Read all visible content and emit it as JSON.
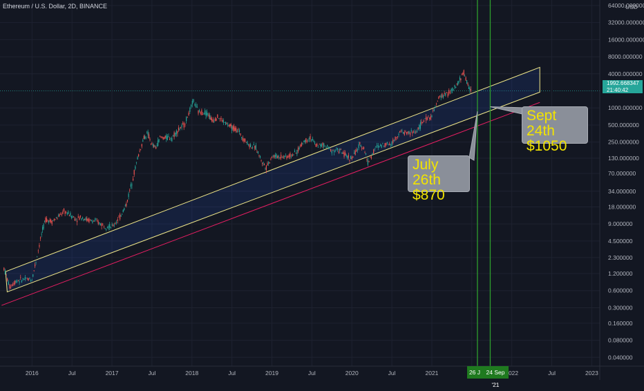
{
  "title": "Ethereum / U.S. Dollar, 2D, BINANCE",
  "axis_unit": "USD",
  "price_tag": {
    "price": "1992.668347",
    "countdown": "21:40:42",
    "color": "#26a69a"
  },
  "callouts": [
    {
      "line1": "July 26th",
      "line2": "$870"
    },
    {
      "line1": "Sept 24th",
      "line2": "$1050"
    }
  ],
  "time_tags": [
    "26 J",
    "24 Sep '21"
  ],
  "colors": {
    "background": "#131722",
    "up": "#26a69a",
    "down": "#ef5350",
    "channel": "#f2e98a",
    "support": "#e91e63",
    "vline": "#2e9e2e",
    "callout_text": "#f2e400"
  },
  "chart_data": {
    "type": "line",
    "scale": "log",
    "title": "Ethereum / U.S. Dollar, 2D, BINANCE",
    "ylabel": "USD",
    "y_ticks": [
      "64000.000000",
      "32000.000000",
      "16000.000000",
      "8000.000000",
      "4000.000000",
      "1992.668347",
      "1000.000000",
      "500.000000",
      "250.000000",
      "130.000000",
      "70.000000",
      "34.000000",
      "18.000000",
      "9.000000",
      "4.500000",
      "2.300000",
      "1.200000",
      "0.600000",
      "0.300000",
      "0.160000",
      "0.080000",
      "0.040000"
    ],
    "y_tick_values": [
      64000,
      32000,
      16000,
      8000,
      4000,
      2000,
      1000,
      500,
      250,
      130,
      70,
      34,
      18,
      9,
      4.5,
      2.3,
      1.2,
      0.6,
      0.3,
      0.16,
      0.08,
      0.04
    ],
    "x_ticks": [
      "2016",
      "Jul",
      "2017",
      "Jul",
      "2018",
      "Jul",
      "2019",
      "Jul",
      "2020",
      "Jul",
      "2021",
      "Jul",
      "2022",
      "Jul",
      "2023"
    ],
    "x_tick_values": [
      2016.0,
      2016.5,
      2017.0,
      2017.5,
      2018.0,
      2018.5,
      2019.0,
      2019.5,
      2020.0,
      2020.5,
      2021.0,
      2021.5,
      2022.0,
      2022.5,
      2023.0
    ],
    "xlim": [
      2015.6,
      2023.1
    ],
    "ylim": [
      0.028,
      80000
    ],
    "series": [
      {
        "x": [
          2015.65,
          2015.72,
          2015.8,
          2015.9,
          2016.0,
          2016.05,
          2016.12,
          2016.17,
          2016.25,
          2016.33,
          2016.4,
          2016.48,
          2016.55,
          2016.62,
          2016.7,
          2016.8,
          2016.9,
          2017.0,
          2017.1,
          2017.18,
          2017.25,
          2017.32,
          2017.4,
          2017.45,
          2017.5,
          2017.55,
          2017.6,
          2017.68,
          2017.75,
          2017.82,
          2017.9,
          2017.96,
          2018.02,
          2018.08,
          2018.15,
          2018.2,
          2018.25,
          2018.32,
          2018.38,
          2018.45,
          2018.5,
          2018.58,
          2018.65,
          2018.72,
          2018.8,
          2018.88,
          2018.93,
          2019.0,
          2019.1,
          2019.2,
          2019.3,
          2019.4,
          2019.48,
          2019.55,
          2019.65,
          2019.75,
          2019.85,
          2019.93,
          2020.0,
          2020.1,
          2020.15,
          2020.2,
          2020.3,
          2020.4,
          2020.5,
          2020.6,
          2020.7,
          2020.8,
          2020.9,
          2021.0,
          2021.1,
          2021.2,
          2021.3,
          2021.35,
          2021.4,
          2021.45,
          2021.5
        ],
        "y": [
          1.5,
          0.7,
          0.9,
          0.95,
          0.95,
          2.0,
          6.0,
          11.0,
          10.0,
          12.0,
          15.0,
          13.0,
          11.0,
          12.0,
          10.5,
          10.0,
          8.5,
          8.0,
          12.0,
          20.0,
          50.0,
          130.0,
          300.0,
          350.0,
          220.0,
          200.0,
          300.0,
          300.0,
          300.0,
          400.0,
          500.0,
          800.0,
          1350.0,
          850.0,
          850.0,
          800.0,
          600.0,
          700.0,
          600.0,
          500.0,
          450.0,
          400.0,
          280.0,
          220.0,
          200.0,
          110.0,
          90.0,
          140.0,
          140.0,
          140.0,
          160.0,
          260.0,
          300.0,
          220.0,
          220.0,
          180.0,
          180.0,
          140.0,
          130.0,
          220.0,
          200.0,
          110.0,
          200.0,
          230.0,
          240.0,
          380.0,
          360.0,
          380.0,
          600.0,
          730.0,
          1600.0,
          1800.0,
          2300.0,
          3200.0,
          4200.0,
          2500.0,
          2000.0
        ]
      }
    ],
    "channel": {
      "upper": {
        "x": [
          2015.67,
          2022.35
        ],
        "y": [
          1.3,
          5200
        ]
      },
      "lower": {
        "x": [
          2015.69,
          2022.35
        ],
        "y": [
          0.57,
          1900
        ]
      },
      "support": {
        "x": [
          2015.62,
          2022.35
        ],
        "y": [
          0.33,
          1250
        ]
      }
    },
    "vertical_lines": [
      2021.57,
      2021.73
    ],
    "annotations": [
      "July 26th $870",
      "Sept 24th $1050"
    ]
  }
}
